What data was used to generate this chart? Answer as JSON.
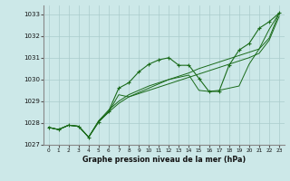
{
  "title": "Graphe pression niveau de la mer (hPa)",
  "bg_color": "#cce8e8",
  "grid_color": "#aacccc",
  "line_color": "#1a6b1a",
  "ylim": [
    1027,
    1033.4
  ],
  "xlim": [
    -0.5,
    23.5
  ],
  "yticks": [
    1027,
    1028,
    1029,
    1030,
    1031,
    1032,
    1033
  ],
  "xticks": [
    0,
    1,
    2,
    3,
    4,
    5,
    6,
    7,
    8,
    9,
    10,
    11,
    12,
    13,
    14,
    15,
    16,
    17,
    18,
    19,
    20,
    21,
    22,
    23
  ],
  "series": [
    [
      1027.8,
      1027.7,
      1027.9,
      1027.85,
      1027.35,
      1028.05,
      1028.55,
      1029.6,
      1029.85,
      1030.35,
      1030.7,
      1030.9,
      1031.0,
      1030.65,
      1030.65,
      1030.05,
      1029.45,
      1029.45,
      1030.65,
      1031.35,
      1031.65,
      1032.35,
      1032.65,
      1033.05
    ],
    [
      1027.8,
      1027.7,
      1027.9,
      1027.85,
      1027.35,
      1028.05,
      1028.5,
      1029.3,
      1029.2,
      1029.4,
      1029.6,
      1029.8,
      1030.0,
      1030.1,
      1030.2,
      1029.5,
      1029.45,
      1029.5,
      1029.6,
      1029.7,
      1030.7,
      1031.4,
      1032.3,
      1033.05
    ],
    [
      1027.8,
      1027.7,
      1027.9,
      1027.85,
      1027.35,
      1028.1,
      1028.6,
      1029.0,
      1029.3,
      1029.5,
      1029.7,
      1029.85,
      1030.0,
      1030.15,
      1030.3,
      1030.5,
      1030.65,
      1030.8,
      1030.95,
      1031.1,
      1031.25,
      1031.4,
      1031.9,
      1033.05
    ],
    [
      1027.8,
      1027.7,
      1027.9,
      1027.85,
      1027.35,
      1028.1,
      1028.5,
      1028.9,
      1029.2,
      1029.35,
      1029.5,
      1029.65,
      1029.8,
      1029.95,
      1030.1,
      1030.25,
      1030.4,
      1030.55,
      1030.7,
      1030.85,
      1031.0,
      1031.2,
      1031.8,
      1032.9
    ]
  ]
}
